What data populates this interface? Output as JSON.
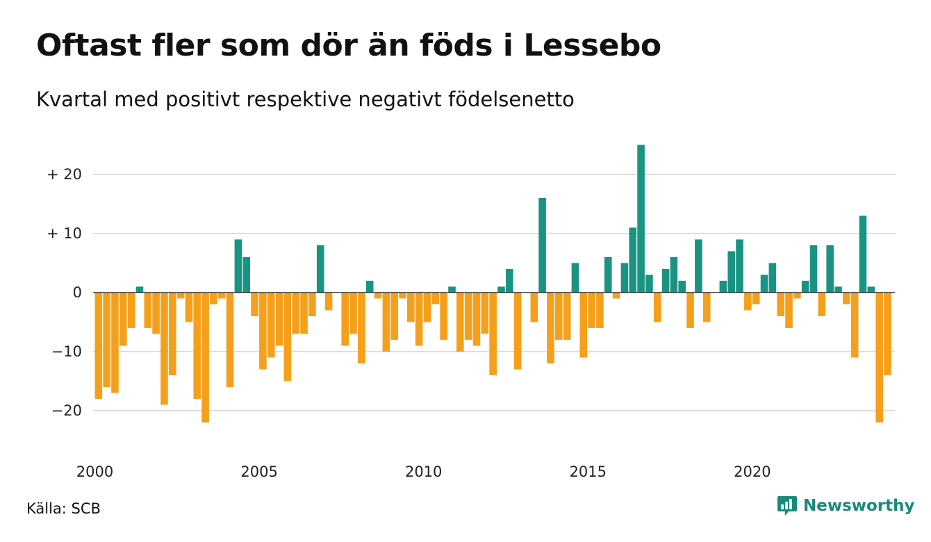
{
  "title": "Oftast fler som dör än föds i Lessebo",
  "subtitle": "Kvartal med positivt respektive negativt födelsenetto",
  "source": "Källa: SCB",
  "brand": {
    "name": "Newsworthy",
    "icon": "newsworthy-logo-icon"
  },
  "colors": {
    "positive": "#1a9482",
    "negative": "#f5a01b",
    "grid": "#dddddd",
    "zero": "#333333"
  },
  "chart_data": {
    "type": "bar",
    "x_start": "2000 Q1",
    "frequency": "quarterly",
    "ylim": [
      -27,
      26
    ],
    "y_ticks": [
      {
        "value": 20,
        "label": "+ 20"
      },
      {
        "value": 10,
        "label": "+ 10"
      },
      {
        "value": 0,
        "label": "0"
      },
      {
        "value": -10,
        "label": "−10"
      },
      {
        "value": -20,
        "label": "−20"
      }
    ],
    "x_ticks": [
      "2000",
      "2005",
      "2010",
      "2015",
      "2020"
    ],
    "grid": true,
    "legend": "none",
    "values": [
      -18,
      -16,
      -17,
      -9,
      -6,
      1,
      -6,
      -7,
      -19,
      -14,
      -1,
      -5,
      -18,
      -22,
      -2,
      -1,
      -16,
      9,
      6,
      -4,
      -13,
      -11,
      -9,
      -15,
      -7,
      -7,
      -4,
      8,
      -3,
      0,
      -9,
      -7,
      -12,
      2,
      -1,
      -10,
      -8,
      -1,
      -5,
      -9,
      -5,
      -2,
      -8,
      1,
      -10,
      -8,
      -9,
      -7,
      -14,
      1,
      4,
      -13,
      0,
      -5,
      16,
      -12,
      -8,
      -8,
      5,
      -11,
      -6,
      -6,
      6,
      -1,
      5,
      11,
      25,
      3,
      -5,
      4,
      6,
      2,
      -6,
      9,
      -5,
      0,
      2,
      7,
      9,
      -3,
      -2,
      3,
      5,
      -4,
      -6,
      -1,
      2,
      8,
      -4,
      8,
      1,
      -2,
      -11,
      13,
      1,
      -22,
      -14
    ]
  }
}
